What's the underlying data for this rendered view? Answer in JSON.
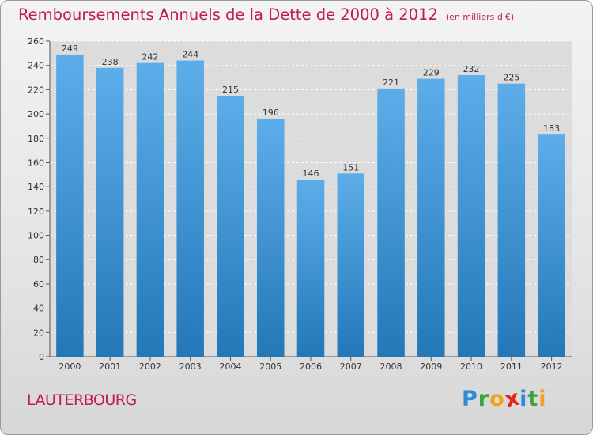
{
  "header": {
    "title": "Remboursements Annuels de la Dette de 2000 à 2012",
    "unit": "(en milliers d'€)"
  },
  "footer": {
    "town": "LAUTERBOURG",
    "logo": [
      "P",
      "r",
      "o",
      "x",
      "i",
      "t",
      "i"
    ],
    "logo_colors": [
      "#2e8bd6",
      "#39a33c",
      "#f0a21a",
      "#e2261c",
      "#2e8bd6",
      "#39a33c",
      "#f0a21a"
    ]
  },
  "chart_data": {
    "type": "bar",
    "title": "Remboursements Annuels de la Dette de 2000 à 2012",
    "xlabel": "",
    "ylabel": "",
    "categories": [
      "2000",
      "2001",
      "2002",
      "2003",
      "2004",
      "2005",
      "2006",
      "2007",
      "2008",
      "2009",
      "2010",
      "2011",
      "2012"
    ],
    "values": [
      249,
      238,
      242,
      244,
      215,
      196,
      146,
      151,
      221,
      229,
      232,
      225,
      183
    ],
    "ylim": [
      0,
      260
    ],
    "yticks": [
      0,
      20,
      40,
      60,
      80,
      100,
      120,
      140,
      160,
      180,
      200,
      220,
      240,
      260
    ],
    "grid": "horizontal dashed",
    "bar_color_top": "#5dadea",
    "bar_color_bottom": "#2478b8",
    "data_labels": true
  }
}
